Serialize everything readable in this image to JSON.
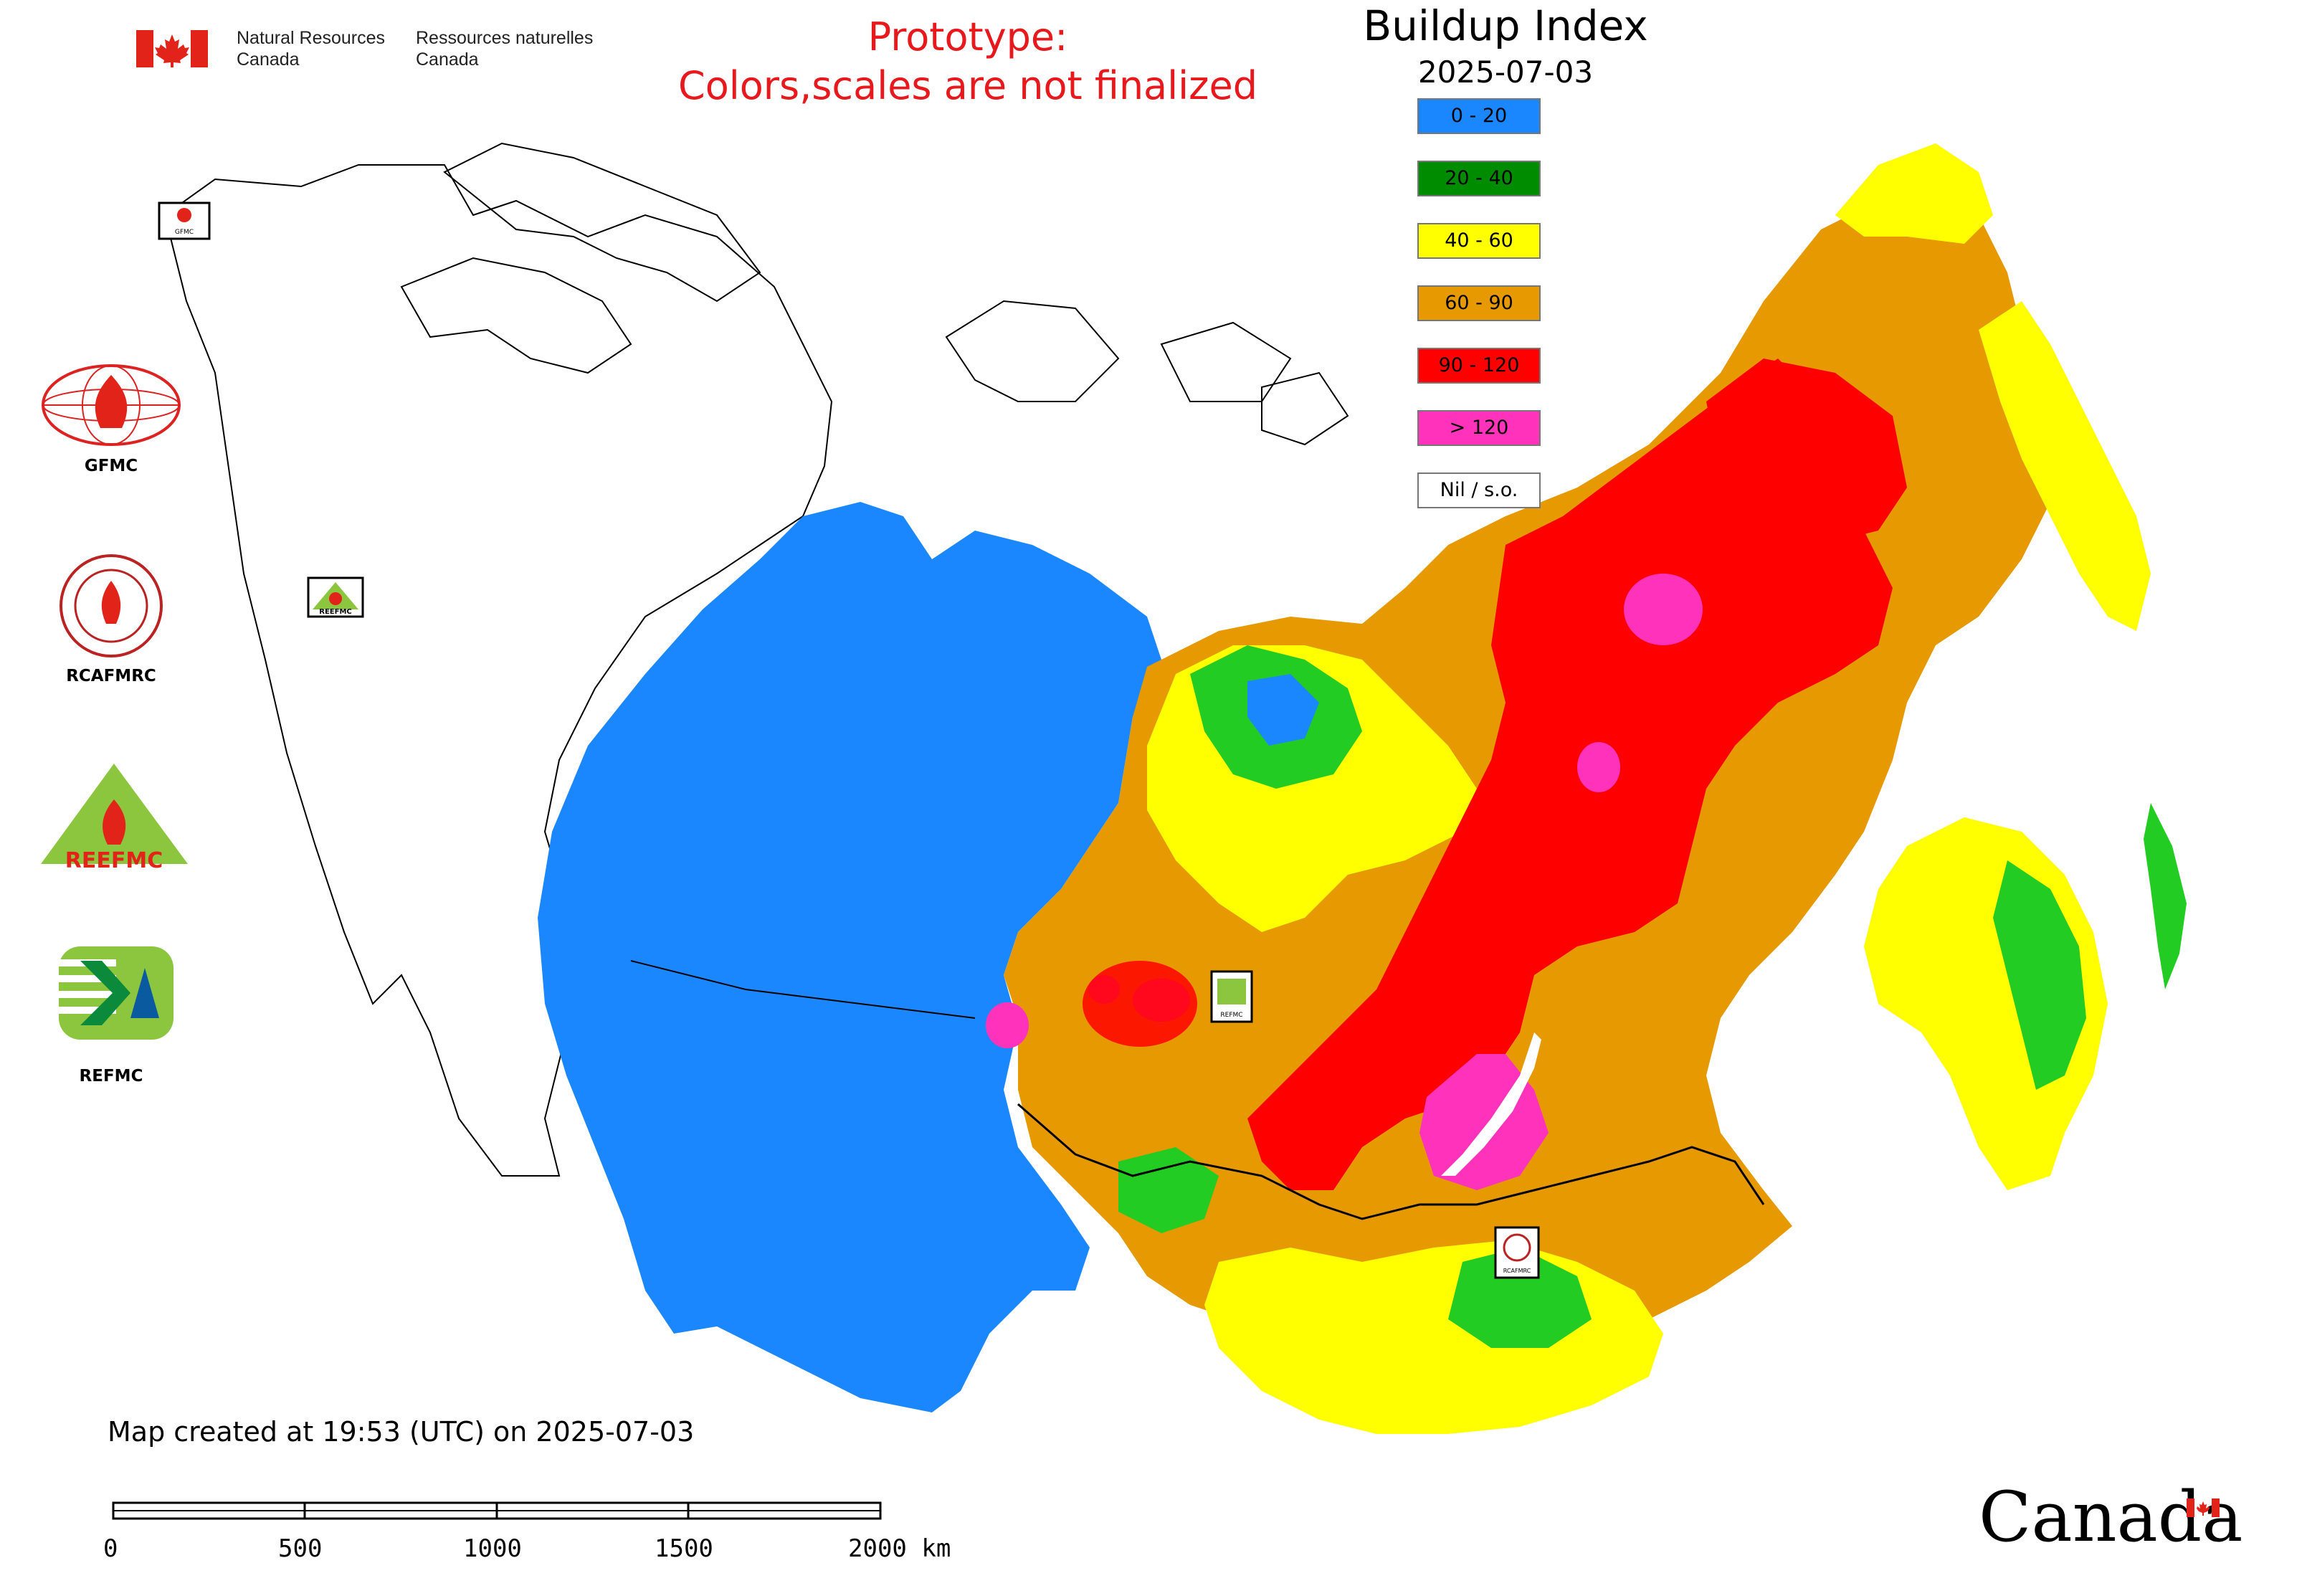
{
  "header": {
    "dept_en_line1": "Natural Resources",
    "dept_en_line2": "Canada",
    "dept_fr_line1": "Ressources naturelles",
    "dept_fr_line2": "Canada",
    "prototype_line1": "Prototype:",
    "prototype_line2": "Colors,scales are not finalized"
  },
  "legend": {
    "title": "Buildup Index",
    "date": "2025-07-03",
    "classes": [
      {
        "label": "0 - 20",
        "color": "#1b87ff"
      },
      {
        "label": "20 - 40",
        "color": "#008c00"
      },
      {
        "label": "40 - 60",
        "color": "#ffff00"
      },
      {
        "label": "60 - 90",
        "color": "#e69900"
      },
      {
        "label": "90 - 120",
        "color": "#ff0000"
      },
      {
        "label": "> 120",
        "color": "#ff33bb"
      },
      {
        "label": "Nil / s.o.",
        "color": "#ffffff"
      }
    ]
  },
  "agencies": [
    {
      "label": "GFMC",
      "icon": "gfmc-logo-icon"
    },
    {
      "label": "RCAFMRC",
      "icon": "rcafmrc-logo-icon"
    },
    {
      "label": "",
      "icon": "reefmc-logo-icon",
      "logo_text": "REEFMC"
    },
    {
      "label": "REFMC",
      "icon": "refmc-logo-icon"
    }
  ],
  "map_markers": {
    "gfmc_marker_text": "GFMC",
    "reefmc_marker_text": "REEFMC",
    "refmc_marker_text": "REFMC",
    "rcafmrc_marker_text": "RCAFMRC"
  },
  "footer": {
    "created": "Map created at 19:53 (UTC) on 2025-07-03",
    "scale_ticks": [
      "0",
      "500",
      "1000",
      "1500",
      "2000 km"
    ],
    "wordmark": "Canada"
  }
}
